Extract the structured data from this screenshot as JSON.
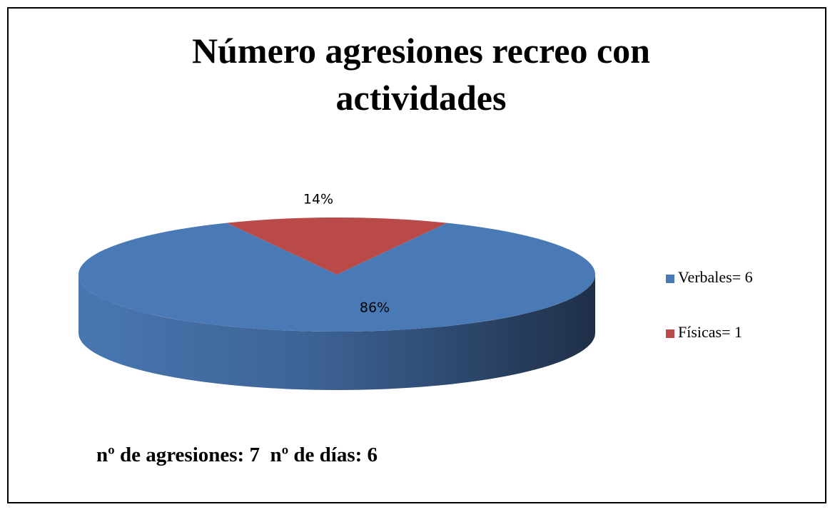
{
  "chart_data": {
    "type": "pie",
    "title": "Número agresiones recreo con actividades",
    "categories": [
      "Verbales= 6",
      "Físicas= 1"
    ],
    "values": [
      86,
      14
    ],
    "value_labels": [
      "86%",
      "14%"
    ],
    "colors": [
      "#4a7ab5",
      "#b94a48"
    ],
    "legend": "right",
    "annotation": "nº de agresiones: 7  nº de días: 6"
  }
}
